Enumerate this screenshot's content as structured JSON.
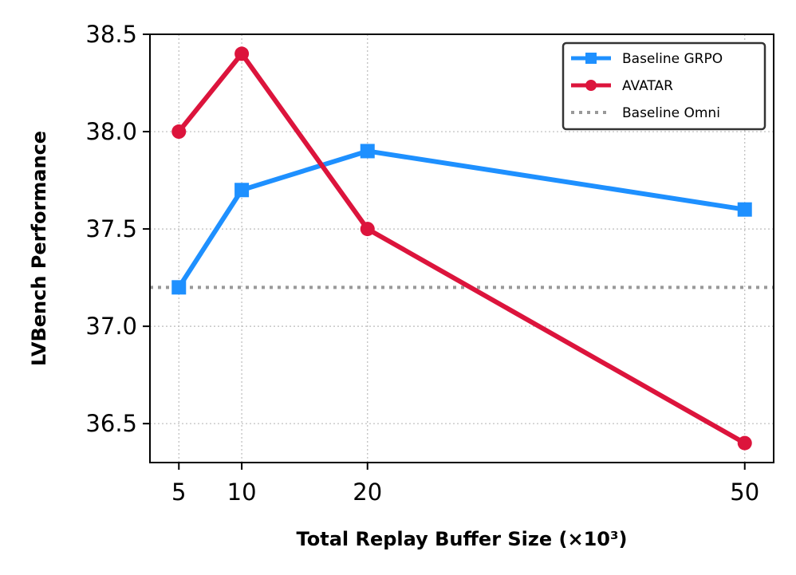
{
  "chart_data": {
    "type": "line",
    "xlabel": "Total Replay Buffer Size (×10³)",
    "ylabel": "LVBench Performance",
    "x": [
      5,
      10,
      20,
      50
    ],
    "x_tick_labels": [
      "5",
      "10",
      "20",
      "50"
    ],
    "y_ticks": [
      36.5,
      37.0,
      37.5,
      38.0,
      38.5
    ],
    "y_tick_labels": [
      "36.5",
      "37.0",
      "37.5",
      "38.0",
      "38.5"
    ],
    "xlim": [
      2.7,
      52.3
    ],
    "ylim": [
      36.3,
      38.5
    ],
    "grid": true,
    "legend_position": "top-right",
    "series": [
      {
        "name": "Baseline GRPO",
        "values": [
          37.2,
          37.7,
          37.9,
          37.6
        ],
        "color": "#1e90ff",
        "marker": "square"
      },
      {
        "name": "AVATAR",
        "values": [
          38.0,
          38.4,
          37.5,
          36.4
        ],
        "color": "#dc143c",
        "marker": "circle"
      }
    ],
    "reference_lines": [
      {
        "name": "Baseline Omni",
        "value": 37.2,
        "color": "#999999",
        "style": "dotted"
      }
    ]
  }
}
